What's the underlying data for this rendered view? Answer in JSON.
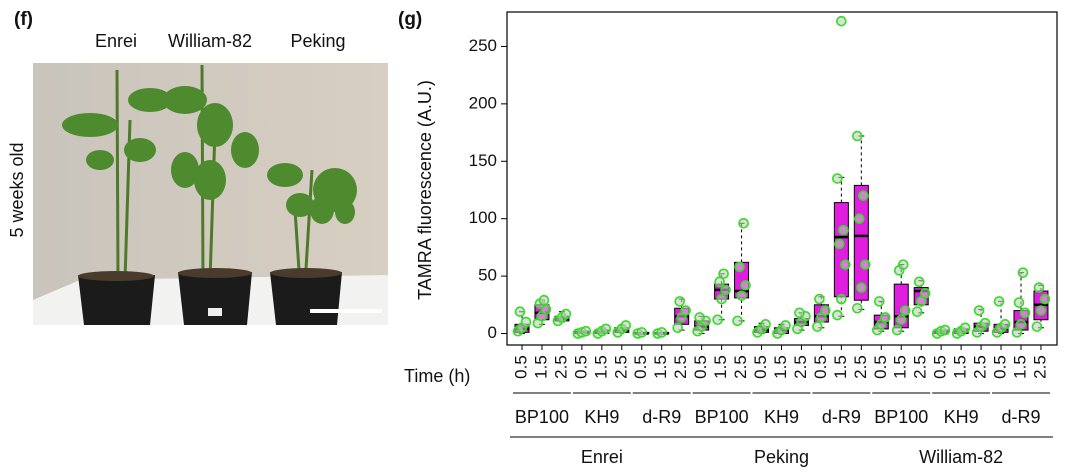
{
  "panel_f": {
    "label": "(f)",
    "cultivars": [
      "Enrei",
      "William-82",
      "Peking"
    ],
    "age": "5 weeks old"
  },
  "chart_data": {
    "type": "box",
    "panel_label": "(g)",
    "ylabel": "TAMRA fluorescence (A.U.)",
    "xlabel": "Time (h)",
    "ylim": [
      -10,
      280
    ],
    "yticks": [
      0,
      50,
      100,
      150,
      200,
      250
    ],
    "box_color": "#e01ee0",
    "point_color": "#33dd22",
    "times": [
      "0.5",
      "1.5",
      "2.5"
    ],
    "groups": [
      {
        "name": "Enrei",
        "subgroups": [
          {
            "name": "BP100",
            "boxes": [
              {
                "min": 0,
                "q1": 1,
                "median": 4,
                "q3": 8,
                "max": 19,
                "points": [
                  2,
                  5,
                  10,
                  19
                ]
              },
              {
                "min": 8,
                "q1": 12,
                "median": 18,
                "q3": 25,
                "max": 29,
                "points": [
                  9,
                  15,
                  21,
                  26,
                  29
                ]
              },
              {
                "min": 10,
                "q1": 11,
                "median": 13,
                "q3": 15,
                "max": 19,
                "points": [
                  11,
                  14,
                  17
                ]
              }
            ]
          },
          {
            "name": "KH9",
            "boxes": [
              {
                "min": 0,
                "q1": 0,
                "median": 1,
                "q3": 2,
                "max": 2,
                "points": [
                  0,
                  1,
                  2
                ]
              },
              {
                "min": 0,
                "q1": 0,
                "median": 1,
                "q3": 3,
                "max": 4,
                "points": [
                  0,
                  2,
                  4
                ]
              },
              {
                "min": 1,
                "q1": 1,
                "median": 3,
                "q3": 5,
                "max": 7,
                "points": [
                  1,
                  4,
                  7
                ]
              }
            ]
          },
          {
            "name": "d-R9",
            "boxes": [
              {
                "min": 0,
                "q1": 0,
                "median": 0,
                "q3": 1,
                "max": 1,
                "points": [
                  0,
                  1
                ]
              },
              {
                "min": 0,
                "q1": 0,
                "median": 0,
                "q3": 1,
                "max": 1,
                "points": [
                  0,
                  1
                ]
              },
              {
                "min": 3,
                "q1": 8,
                "median": 15,
                "q3": 22,
                "max": 30,
                "points": [
                  5,
                  14,
                  20,
                  28
                ]
              }
            ]
          }
        ]
      },
      {
        "name": "Peking",
        "subgroups": [
          {
            "name": "BP100",
            "boxes": [
              {
                "min": 0,
                "q1": 3,
                "median": 6,
                "q3": 11,
                "max": 15,
                "points": [
                  2,
                  6,
                  11,
                  14
                ]
              },
              {
                "min": 12,
                "q1": 30,
                "median": 38,
                "q3": 43,
                "max": 52,
                "points": [
                  12,
                  30,
                  38,
                  45,
                  52
                ]
              },
              {
                "min": 11,
                "q1": 31,
                "median": 37,
                "q3": 62,
                "max": 96,
                "points": [
                  11,
                  33,
                  42,
                  58,
                  96
                ]
              }
            ]
          },
          {
            "name": "KH9",
            "boxes": [
              {
                "min": 0,
                "q1": 1,
                "median": 3,
                "q3": 6,
                "max": 9,
                "points": [
                  1,
                  4,
                  8
                ]
              },
              {
                "min": 0,
                "q1": 0,
                "median": 3,
                "q3": 5,
                "max": 8,
                "points": [
                  0,
                  3,
                  7
                ]
              },
              {
                "min": 3,
                "q1": 7,
                "median": 10,
                "q3": 13,
                "max": 18,
                "points": [
                  4,
                  10,
                  15,
                  18
                ]
              }
            ]
          },
          {
            "name": "d-R9",
            "boxes": [
              {
                "min": 5,
                "q1": 10,
                "median": 15,
                "q3": 25,
                "max": 32,
                "points": [
                  6,
                  14,
                  20,
                  30
                ]
              },
              {
                "min": 15,
                "q1": 32,
                "median": 84,
                "q3": 114,
                "max": 136,
                "points": [
                  16,
                  30,
                  60,
                  78,
                  90,
                  135,
                  272
                ]
              },
              {
                "min": 21,
                "q1": 29,
                "median": 85,
                "q3": 129,
                "max": 172,
                "points": [
                  22,
                  40,
                  60,
                  100,
                  120,
                  172
                ]
              }
            ]
          }
        ]
      },
      {
        "name": "William-82",
        "subgroups": [
          {
            "name": "BP100",
            "boxes": [
              {
                "min": 2,
                "q1": 4,
                "median": 10,
                "q3": 16,
                "max": 28,
                "points": [
                  3,
                  8,
                  14,
                  28
                ]
              },
              {
                "min": 2,
                "q1": 5,
                "median": 15,
                "q3": 43,
                "max": 60,
                "points": [
                  3,
                  12,
                  20,
                  55,
                  60
                ]
              },
              {
                "min": 18,
                "q1": 25,
                "median": 37,
                "q3": 40,
                "max": 46,
                "points": [
                  19,
                  28,
                  35,
                  45
                ]
              }
            ]
          },
          {
            "name": "KH9",
            "boxes": [
              {
                "min": 0,
                "q1": 0,
                "median": 1,
                "q3": 3,
                "max": 3,
                "points": [
                  0,
                  2,
                  3
                ]
              },
              {
                "min": 0,
                "q1": 0,
                "median": 2,
                "q3": 4,
                "max": 5,
                "points": [
                  0,
                  2,
                  5
                ]
              },
              {
                "min": 0,
                "q1": 2,
                "median": 6,
                "q3": 9,
                "max": 21,
                "points": [
                  1,
                  6,
                  9,
                  20
                ]
              }
            ]
          },
          {
            "name": "d-R9",
            "boxes": [
              {
                "min": 0,
                "q1": 1,
                "median": 4,
                "q3": 8,
                "max": 28,
                "points": [
                  1,
                  5,
                  8,
                  28
                ]
              },
              {
                "min": 0,
                "q1": 3,
                "median": 10,
                "q3": 20,
                "max": 53,
                "points": [
                  1,
                  8,
                  18,
                  27,
                  53
                ]
              },
              {
                "min": 5,
                "q1": 12,
                "median": 25,
                "q3": 37,
                "max": 42,
                "points": [
                  6,
                  20,
                  30,
                  40
                ]
              }
            ]
          }
        ]
      }
    ]
  }
}
